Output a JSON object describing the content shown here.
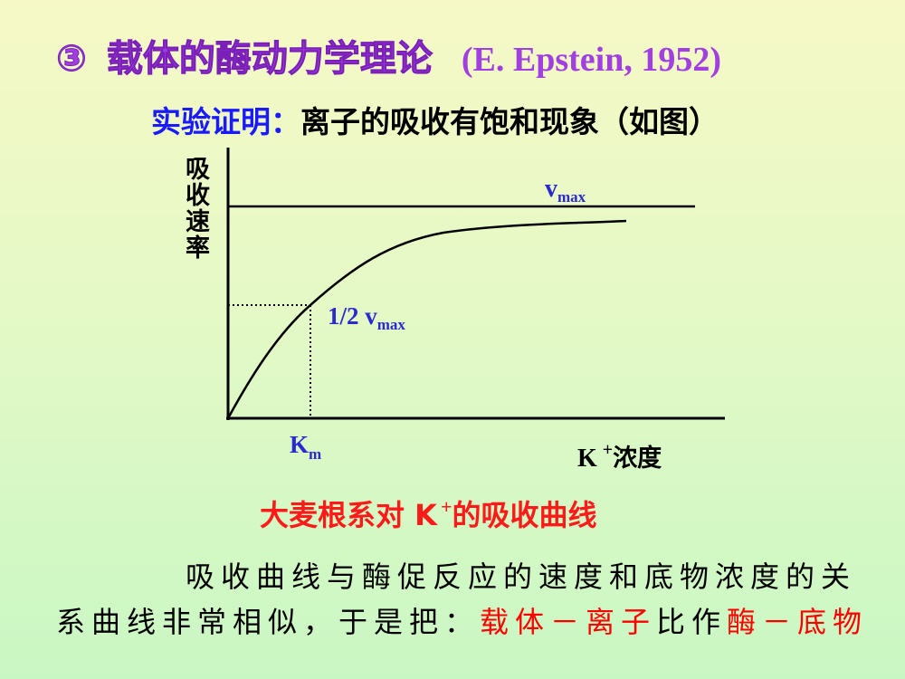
{
  "title": {
    "number": "③",
    "text": "载体的酶动力学理论",
    "citation": "(E. Epstein, 1952)"
  },
  "subtitle": {
    "lead": "实验证明：",
    "text": "离子的吸收有饱和现象（如图）"
  },
  "diagram": {
    "y_label": "吸收速率",
    "vmax": {
      "symbol": "v",
      "subscript": "max"
    },
    "half_vmax": {
      "symbol": "1/2 v",
      "subscript": "max"
    },
    "km": {
      "symbol": "K",
      "subscript": "m"
    },
    "x_label": {
      "symbol": "K",
      "superscript": "+",
      "text": "浓度"
    },
    "caption": {
      "lead": "大麦根系对 K",
      "superscript": "+",
      "text": "的吸收曲线"
    }
  },
  "paragraph": [
    {
      "text": "吸收曲线与酶促反应的速度和底物浓度的关系曲线非常相似，于是把：",
      "color": "#000000"
    },
    {
      "text": "载体－离子",
      "color": "#ff0000"
    },
    {
      "text": "比作",
      "color": "#000000"
    },
    {
      "text": "酶－底物",
      "color": "#ff0000"
    }
  ]
}
